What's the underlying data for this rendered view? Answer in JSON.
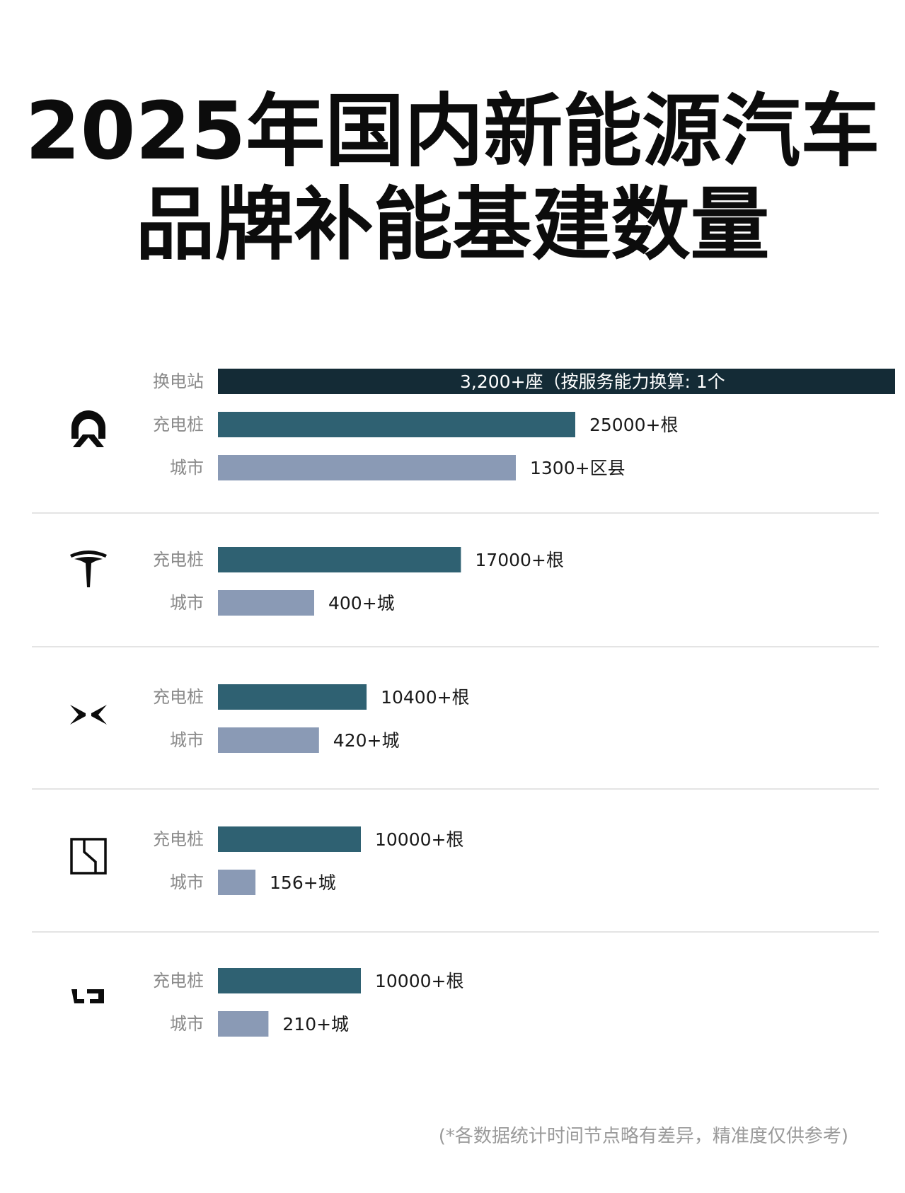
{
  "title": {
    "line1": "2025年国内新能源汽车",
    "line2": "品牌补能基建数量"
  },
  "footnote": "(*各数据统计时间节点略有差异，精准度仅供参考)",
  "colors": {
    "swap": "#142b36",
    "charger": "#2f6172",
    "city": "#8a9ab5",
    "divider": "#dcdcdc"
  },
  "chart_data": {
    "type": "bar",
    "orientation": "horizontal",
    "groups": [
      {
        "brand_icon": "nio-logo-icon",
        "bars": [
          {
            "label": "换电站",
            "value": 3200,
            "value_label": "3,200+座（按服务能力换算: 1个",
            "kind": "swap"
          },
          {
            "label": "充电桩",
            "value": 25000,
            "value_label": "25000+根",
            "kind": "charger"
          },
          {
            "label": "城市",
            "value": 1300,
            "value_label": "1300+区县",
            "kind": "city"
          }
        ]
      },
      {
        "brand_icon": "tesla-logo-icon",
        "bars": [
          {
            "label": "充电桩",
            "value": 17000,
            "value_label": "17000+根",
            "kind": "charger"
          },
          {
            "label": "城市",
            "value": 400,
            "value_label": "400+城",
            "kind": "city"
          }
        ]
      },
      {
        "brand_icon": "xpeng-logo-icon",
        "bars": [
          {
            "label": "充电桩",
            "value": 10400,
            "value_label": "10400+根",
            "kind": "charger"
          },
          {
            "label": "城市",
            "value": 420,
            "value_label": "420+城",
            "kind": "city"
          }
        ]
      },
      {
        "brand_icon": "zeekr-logo-icon",
        "bars": [
          {
            "label": "充电桩",
            "value": 10000,
            "value_label": "10000+根",
            "kind": "charger"
          },
          {
            "label": "城市",
            "value": 156,
            "value_label": "156+城",
            "kind": "city"
          }
        ]
      },
      {
        "brand_icon": "li-auto-logo-icon",
        "bars": [
          {
            "label": "充电桩",
            "value": 10000,
            "value_label": "10000+根",
            "kind": "charger"
          },
          {
            "label": "城市",
            "value": 210,
            "value_label": "210+城",
            "kind": "city"
          }
        ]
      }
    ]
  }
}
